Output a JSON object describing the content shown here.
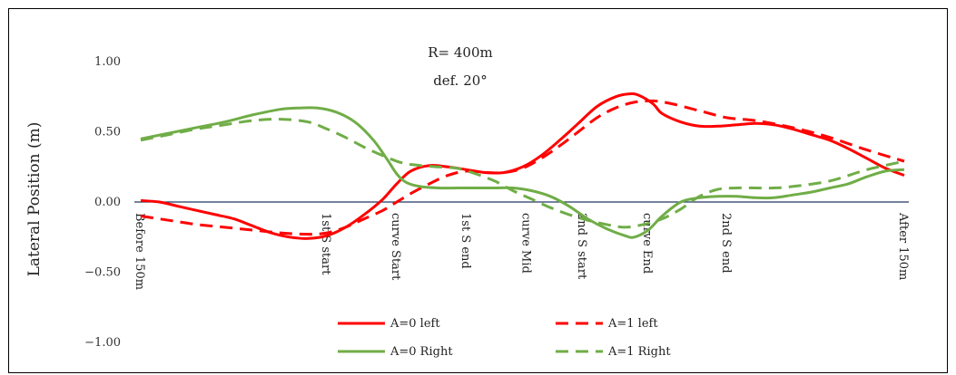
{
  "chart_data": {
    "type": "line",
    "title": "R= 400m",
    "subtitle": "def. 20°",
    "xlabel": "",
    "ylabel": "Lateral Position (m)",
    "ylim": [
      -1.0,
      1.0
    ],
    "yticks": [
      1.0,
      0.5,
      0.0,
      -0.5,
      -1.0
    ],
    "ytick_labels": [
      "1.00",
      "0.50",
      "0.00",
      "−0.50",
      "−1.00"
    ],
    "x_categories": [
      "Before 150m",
      "1st S start",
      "curve Start",
      "1st S end",
      "curve Mid",
      "2nd S start",
      "curve End",
      "2nd S end",
      "After 150m"
    ],
    "x_category_positions": [
      0,
      20,
      27.5,
      35,
      41.5,
      47.5,
      54.5,
      63,
      82
    ],
    "grid": false,
    "zero_line": true,
    "legend_position": "bottom",
    "series": [
      {
        "name": "A=0 left",
        "color": "#ff0000",
        "dash": "solid",
        "x": [
          0,
          2,
          4,
          6,
          8,
          10,
          12,
          14,
          16,
          18,
          20,
          22,
          24,
          26,
          27.5,
          29,
          31,
          33,
          35,
          37,
          39,
          41,
          43,
          45,
          47,
          49,
          51,
          52.5,
          53.5,
          55,
          56,
          58,
          60,
          62,
          64,
          66,
          68,
          70,
          72,
          74,
          76,
          78,
          80,
          82
        ],
        "y": [
          0.01,
          0.0,
          -0.03,
          -0.06,
          -0.09,
          -0.12,
          -0.17,
          -0.22,
          -0.25,
          -0.26,
          -0.24,
          -0.18,
          -0.09,
          0.02,
          0.13,
          0.22,
          0.26,
          0.25,
          0.23,
          0.21,
          0.21,
          0.25,
          0.33,
          0.44,
          0.56,
          0.68,
          0.75,
          0.77,
          0.76,
          0.7,
          0.63,
          0.57,
          0.54,
          0.54,
          0.55,
          0.56,
          0.55,
          0.52,
          0.48,
          0.44,
          0.38,
          0.31,
          0.24,
          0.19
        ]
      },
      {
        "name": "A=1 left",
        "color": "#ff0000",
        "dash": "dashed",
        "x": [
          0,
          3,
          6,
          9,
          12,
          15,
          18,
          20,
          22,
          24,
          26,
          27.5,
          29,
          31,
          33,
          35,
          37,
          39,
          41,
          43,
          45,
          47,
          49,
          51,
          53,
          55,
          57,
          60,
          63,
          66,
          70,
          74,
          78,
          82
        ],
        "y": [
          -0.1,
          -0.13,
          -0.16,
          -0.18,
          -0.2,
          -0.22,
          -0.23,
          -0.22,
          -0.18,
          -0.12,
          -0.06,
          0.0,
          0.06,
          0.13,
          0.19,
          0.22,
          0.21,
          0.21,
          0.24,
          0.31,
          0.4,
          0.5,
          0.6,
          0.67,
          0.71,
          0.72,
          0.7,
          0.65,
          0.6,
          0.58,
          0.53,
          0.46,
          0.37,
          0.29
        ]
      },
      {
        "name": "A=0 Right",
        "color": "#70ad47",
        "dash": "solid",
        "x": [
          0,
          3,
          6,
          9,
          12,
          15,
          17,
          19,
          21,
          23,
          25,
          26.5,
          27.5,
          28.5,
          30,
          32,
          34,
          36,
          38,
          40,
          42,
          44,
          46,
          48,
          50,
          52,
          53,
          54.5,
          56,
          58,
          60,
          62,
          64,
          66,
          68,
          70,
          72,
          74,
          76,
          78,
          80,
          82
        ],
        "y": [
          0.45,
          0.49,
          0.53,
          0.57,
          0.62,
          0.66,
          0.67,
          0.67,
          0.64,
          0.57,
          0.44,
          0.3,
          0.2,
          0.14,
          0.11,
          0.1,
          0.1,
          0.1,
          0.1,
          0.1,
          0.08,
          0.04,
          -0.03,
          -0.12,
          -0.19,
          -0.24,
          -0.25,
          -0.2,
          -0.1,
          0.0,
          0.03,
          0.04,
          0.04,
          0.03,
          0.03,
          0.05,
          0.07,
          0.1,
          0.13,
          0.18,
          0.22,
          0.23
        ]
      },
      {
        "name": "A=1 Right",
        "color": "#70ad47",
        "dash": "dashed",
        "x": [
          0,
          3,
          6,
          9,
          12,
          15,
          18,
          20,
          22,
          24,
          26,
          28,
          30,
          32,
          34,
          36,
          38,
          40,
          42,
          44,
          46,
          48,
          50,
          52,
          54,
          56,
          58,
          60,
          62,
          64,
          66,
          68,
          70,
          74,
          78,
          82
        ],
        "y": [
          0.44,
          0.48,
          0.52,
          0.55,
          0.58,
          0.59,
          0.57,
          0.52,
          0.46,
          0.39,
          0.33,
          0.28,
          0.26,
          0.25,
          0.24,
          0.2,
          0.15,
          0.08,
          0.02,
          -0.04,
          -0.09,
          -0.13,
          -0.16,
          -0.18,
          -0.16,
          -0.12,
          -0.05,
          0.04,
          0.09,
          0.1,
          0.1,
          0.1,
          0.11,
          0.15,
          0.23,
          0.29
        ]
      }
    ]
  }
}
